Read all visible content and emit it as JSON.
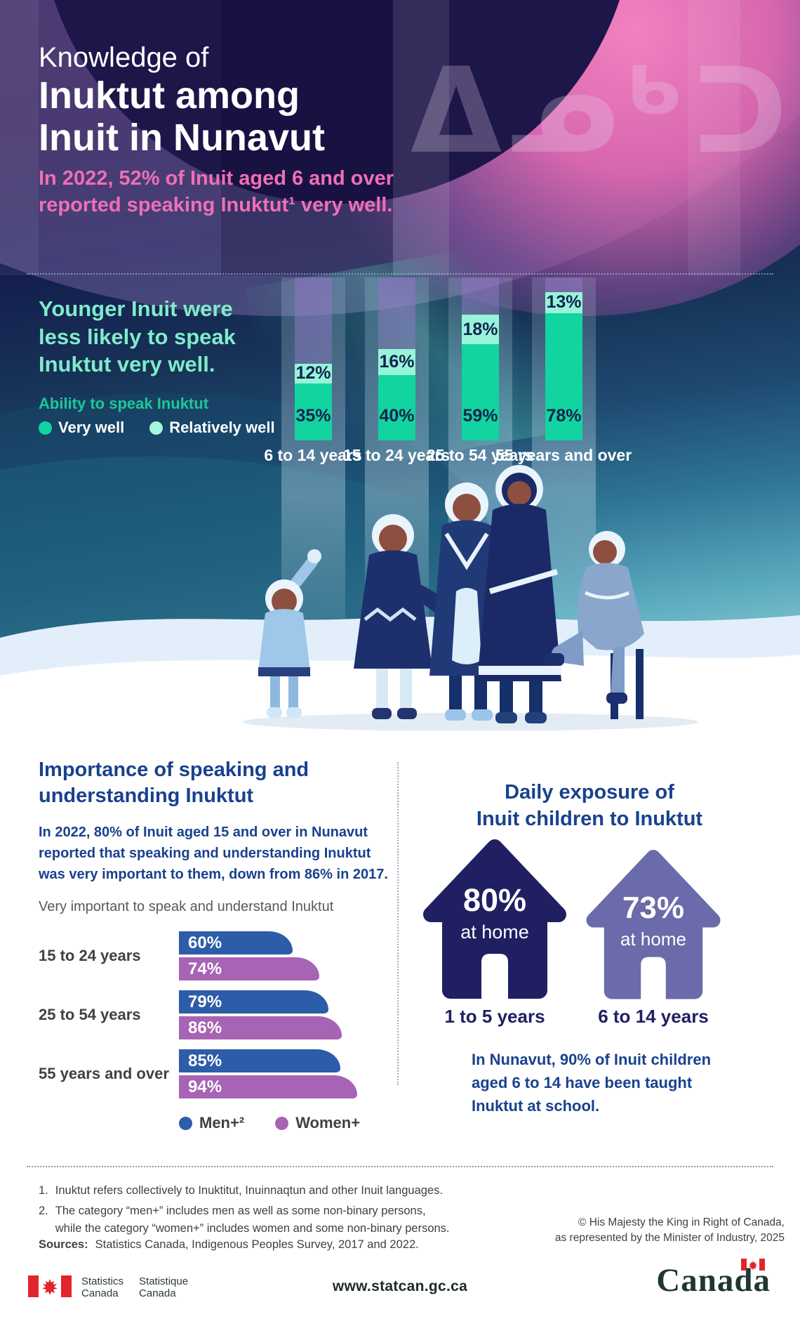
{
  "hero": {
    "title_line1": "Knowledge of",
    "title_line2": "Inuktut among",
    "title_line3": "Inuit in Nunavut",
    "subtitle_line1": "In 2022, 52% of Inuit aged 6 and over",
    "subtitle_line2": "reported speaking Inuktut¹ very well.",
    "syllabics_watermark": "ᐃᓄᒃᑐᑦ"
  },
  "age_chart": {
    "headline_line1": "Younger Inuit were",
    "headline_line2": "less likely to speak",
    "headline_line3": "Inuktut very well.",
    "legend_title": "Ability to speak Inuktut"
  },
  "importance": {
    "heading_line1": "Importance of speaking and",
    "heading_line2": "understanding Inuktut",
    "paragraph_line1": "In 2022, 80% of Inuit aged 15 and over in Nunavut",
    "paragraph_line2": "reported that speaking and understanding Inuktut",
    "paragraph_line3": "was very important to them, down from 86% in 2017.",
    "chart_caption": "Very important to speak and understand Inuktut"
  },
  "exposure": {
    "heading_line1": "Daily exposure of",
    "heading_line2": "Inuit children to Inuktut",
    "houses": [
      {
        "value": "80%",
        "note": "at home",
        "label": "1 to 5 years",
        "color": "#201f62"
      },
      {
        "value": "73%",
        "note": "at home",
        "label": "6 to 14 years",
        "color": "#6b6aaa"
      }
    ],
    "paragraph_line1": "In Nunavut, 90% of Inuit children",
    "paragraph_line2": "aged 6 to 14 have been taught",
    "paragraph_line3": "Inuktut at school."
  },
  "footnotes": {
    "fn1_num": "1.",
    "fn1_text": "Inuktut refers collectively to Inuktitut, Inuinnaqtun and other Inuit languages.",
    "fn2_num": "2.",
    "fn2_line1": "The category “men+” includes men as well as some non-binary persons,",
    "fn2_line2": "while the category “women+” includes women and some non-binary persons.",
    "sources_label": "Sources:",
    "sources_text": " Statistics Canada, Indigenous Peoples Survey, 2017 and 2022.",
    "copyright_line1": "© His Majesty the King in Right of Canada,",
    "copyright_line2": "as represented by the Minister of Industry, 2025"
  },
  "footer": {
    "stats_en_line1": "Statistics",
    "stats_en_line2": "Canada",
    "stats_fr_line1": "Statistique",
    "stats_fr_line2": "Canada",
    "url": "www.statcan.gc.ca",
    "wordmark": "Canada",
    "flag_red": "#e0252c"
  },
  "chart_data": [
    {
      "type": "bar",
      "stacked": true,
      "unit": "%",
      "title": "Younger Inuit were less likely to speak Inuktut very well.",
      "legend_title": "Ability to speak Inuktut",
      "categories": [
        "6 to 14 years",
        "15 to 24 years",
        "25 to 54 years",
        "55 years and over"
      ],
      "series": [
        {
          "name": "Very well",
          "color": "#12d4a0",
          "values": [
            35,
            40,
            59,
            78
          ]
        },
        {
          "name": "Relatively well",
          "color": "#a4f6de",
          "values": [
            12,
            16,
            18,
            13
          ]
        }
      ],
      "ylim": [
        0,
        100
      ],
      "legend_position": "left",
      "grid": false
    },
    {
      "type": "bar",
      "orientation": "horizontal",
      "unit": "%",
      "title": "Very important to speak and understand Inuktut",
      "categories": [
        "15 to 24 years",
        "25 to 54 years",
        "55 years and over"
      ],
      "series": [
        {
          "name": "Men+²",
          "color": "#2d5ca9",
          "values": [
            60,
            79,
            85
          ]
        },
        {
          "name": "Women+",
          "color": "#a763b4",
          "values": [
            74,
            86,
            94
          ]
        }
      ],
      "xlim": [
        0,
        100
      ],
      "legend_position": "bottom",
      "grid": false
    },
    {
      "type": "pictogram",
      "unit": "%",
      "title": "Daily exposure of Inuit children to Inuktut",
      "categories": [
        "1 to 5 years",
        "6 to 14 years"
      ],
      "values": [
        80,
        73
      ],
      "annotation": "at home",
      "note": "In Nunavut, 90% of Inuit children aged 6 to 14 have been taught Inuktut at school."
    }
  ]
}
